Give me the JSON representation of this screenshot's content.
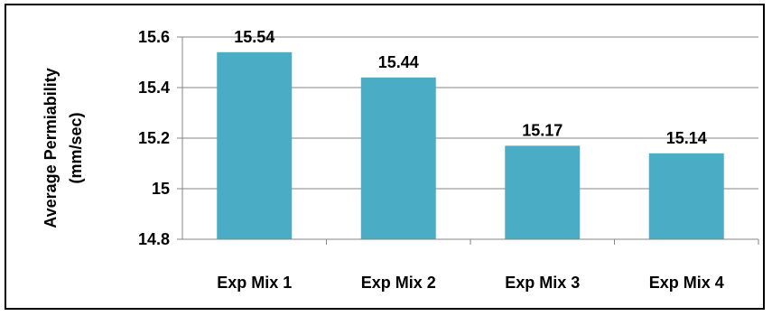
{
  "chart_data": {
    "type": "bar",
    "categories": [
      "Exp Mix 1",
      "Exp Mix 2",
      "Exp Mix 3",
      "Exp Mix 4"
    ],
    "values": [
      15.54,
      15.44,
      15.17,
      15.14
    ],
    "data_labels": [
      "15.54",
      "15.44",
      "15.17",
      "15.14"
    ],
    "title": "",
    "xlabel": "",
    "ylabel_lines": [
      "Average Permiability",
      "(mm/sec)"
    ],
    "ylim": [
      14.8,
      15.6
    ],
    "yticks": [
      14.8,
      15,
      15.2,
      15.4,
      15.6
    ],
    "ytick_labels": [
      "14.8",
      "15",
      "15.2",
      "15.4",
      "15.6"
    ],
    "grid": true,
    "legend": "none",
    "bar_color": "#4BACC6",
    "grid_color": "#868686"
  }
}
